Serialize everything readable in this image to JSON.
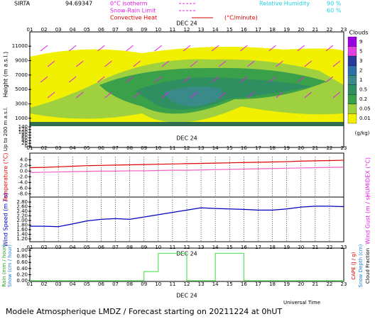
{
  "header": {
    "station": "SIRTA",
    "coords": "94.69347",
    "isotherm": "0°C isotherm",
    "snow_rain": "Snow-Rain Limit",
    "convective": "Convective Heat",
    "convective_unit": "(°C/minute)",
    "rh": "Relative Humidity",
    "rh_high": "90 %",
    "rh_low": "60 %"
  },
  "date": "DEC 24",
  "hours": [
    "01",
    "02",
    "03",
    "04",
    "05",
    "06",
    "07",
    "08",
    "09",
    "10",
    "11",
    "12",
    "13",
    "14",
    "15",
    "16",
    "17",
    "18",
    "19",
    "20",
    "21",
    "22",
    "23"
  ],
  "clouds": {
    "y_label": "Height (m a.s.l.)",
    "low_label": "Up to 200 m a.s.l.",
    "ylim": [
      0,
      12000
    ],
    "yticks": [
      1000,
      3000,
      5000,
      7000,
      9000,
      11000
    ],
    "low_ylim": [
      0,
      140
    ],
    "low_yticks": [
      0,
      20,
      40,
      60,
      80,
      100,
      120,
      140
    ],
    "legend_title": "Clouds",
    "legend_unit": "(g/kg)",
    "legend_levels": [
      "9",
      "5",
      "3",
      "2",
      "1",
      "0.5",
      "0.2",
      "0.05",
      "0.01"
    ],
    "legend_colors": [
      "#9b00e0",
      "#e040e0",
      "#2a3a9a",
      "#2f6fa8",
      "#3a8a8a",
      "#2f8f60",
      "#3aa04a",
      "#9fd040",
      "#f0f000"
    ]
  },
  "chart_data": [
    {
      "type": "line",
      "y_label": "Temperature (°C)",
      "y2_label": "HUMIDEX (°C)",
      "ylim": [
        -9,
        5
      ],
      "yticks": [
        {
          "value": 4,
          "label": "4.0"
        },
        {
          "value": 2,
          "label": "2.0"
        },
        {
          "value": 0,
          "label": "0.0"
        },
        {
          "value": -2,
          "label": "-2.0"
        },
        {
          "value": -4,
          "label": "-4.0"
        },
        {
          "value": -6,
          "label": "-6.0"
        },
        {
          "value": -8,
          "label": "-8.0"
        }
      ],
      "series": [
        {
          "color": "#e00000",
          "values": [
            1.2,
            1.3,
            1.5,
            1.7,
            1.9,
            2.0,
            2.1,
            2.2,
            2.3,
            2.4,
            2.5,
            2.6,
            2.7,
            2.8,
            2.9,
            3.0,
            3.1,
            3.2,
            3.3,
            3.5,
            3.6,
            3.7,
            3.8
          ]
        },
        {
          "color": "#f060c0",
          "values": [
            -0.5,
            -0.4,
            -0.3,
            -0.2,
            -0.1,
            0.0,
            0.0,
            0.1,
            0.1,
            0.2,
            0.3,
            0.3,
            0.4,
            0.5,
            0.6,
            0.7,
            0.8,
            0.9,
            1.0,
            1.1,
            1.2,
            1.3,
            1.4
          ]
        }
      ]
    },
    {
      "type": "line",
      "y_label": "Wind Speed (m / s)",
      "y2_label": "Wind Gust (m / s)",
      "ylim": [
        1.1,
        2.9
      ],
      "yticks": [
        {
          "value": 2.8,
          "label": "2.80"
        },
        {
          "value": 2.6,
          "label": "2.60"
        },
        {
          "value": 2.4,
          "label": "2.40"
        },
        {
          "value": 2.2,
          "label": "2.20"
        },
        {
          "value": 2.0,
          "label": "2.00"
        },
        {
          "value": 1.8,
          "label": "1.80"
        },
        {
          "value": 1.6,
          "label": "1.60"
        },
        {
          "value": 1.4,
          "label": "1.40"
        },
        {
          "value": 1.2,
          "label": "1.20"
        }
      ],
      "series": [
        {
          "color": "#0000c0",
          "values": [
            1.75,
            1.75,
            1.73,
            1.85,
            1.98,
            2.05,
            2.08,
            2.05,
            2.15,
            2.25,
            2.35,
            2.45,
            2.55,
            2.52,
            2.5,
            2.48,
            2.45,
            2.45,
            2.5,
            2.58,
            2.62,
            2.62,
            2.6
          ]
        }
      ]
    },
    {
      "type": "step",
      "y_label": "Rain (mm / hour)",
      "y_label2": "Snow (cm / hour)",
      "y2_label": "CAPE (J / g)",
      "y2_label2": "Snow Depth (cm)",
      "y2_label3": "Cloud Fraction",
      "x_label": "Universal Time",
      "ylim": [
        0,
        1
      ],
      "yticks": [
        {
          "value": 1,
          "label": "1.00"
        },
        {
          "value": 0.8,
          "label": "0.80"
        },
        {
          "value": 0.6,
          "label": "0.60"
        },
        {
          "value": 0.4,
          "label": "0.40"
        },
        {
          "value": 0.2,
          "label": "0.20"
        },
        {
          "value": 0,
          "label": "0.00"
        }
      ],
      "series": [
        {
          "color": "#60e060",
          "values": [
            0,
            0,
            0,
            0,
            0,
            0,
            0,
            0,
            0.3,
            0.9,
            0.9,
            0,
            0,
            0.9,
            0.9,
            0,
            0,
            0,
            0,
            0,
            0,
            0,
            0
          ]
        }
      ]
    }
  ],
  "footer": "Modele Atmospherique LMDZ / Forecast starting on 20211224 at 0hUT"
}
